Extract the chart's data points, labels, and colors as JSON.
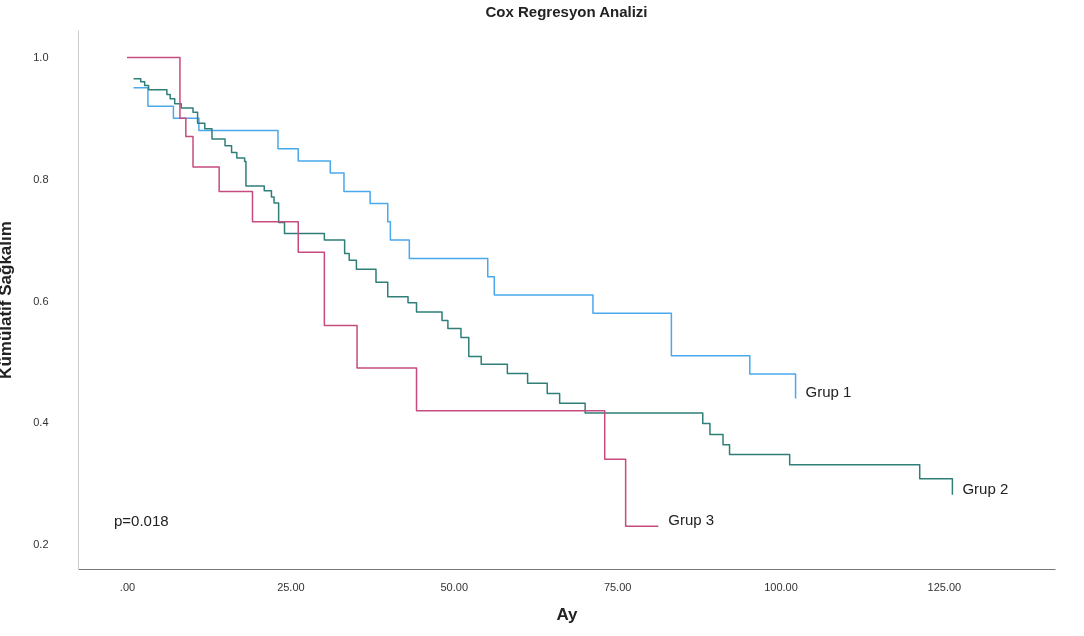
{
  "chart_data": {
    "type": "step",
    "title": "Cox Regresyon Analizi",
    "xlabel": "Ay",
    "ylabel": "Kümülatif Sağkalım",
    "xlim": [
      -7.5,
      142
    ],
    "ylim": [
      0.16,
      1.045
    ],
    "xticks": [
      {
        "value": 0,
        "label": ".00"
      },
      {
        "value": 25,
        "label": "25.00"
      },
      {
        "value": 50,
        "label": "50.00"
      },
      {
        "value": 75,
        "label": "75.00"
      },
      {
        "value": 100,
        "label": "100.00"
      },
      {
        "value": 125,
        "label": "125.00"
      }
    ],
    "yticks": [
      0.2,
      0.4,
      0.6,
      0.8,
      {
        "value": 1,
        "label": "1.0"
      }
    ],
    "grid": false,
    "legend": false,
    "marker": "none",
    "line_style": "solid",
    "annotations": [
      "p=0.018"
    ],
    "series": [
      {
        "name": "Grup 1",
        "color": "#4aa8ec",
        "x": [
          1.0,
          3.2,
          7.1,
          11.0,
          23.1,
          26.2,
          31.1,
          33.2,
          37.2,
          39.9,
          40.3,
          43.2,
          55.2,
          56.2,
          71.3,
          83.3,
          95.3,
          102.3
        ],
        "values": [
          0.95,
          0.92,
          0.9,
          0.88,
          0.85,
          0.83,
          0.81,
          0.78,
          0.76,
          0.73,
          0.7,
          0.67,
          0.64,
          0.61,
          0.58,
          0.51,
          0.48,
          0.44
        ]
      },
      {
        "name": "Grup 2",
        "color": "#2f7f78",
        "x": [
          1.0,
          2.1,
          2.7,
          3.3,
          6.1,
          6.6,
          7.3,
          8.3,
          10.1,
          10.8,
          11.9,
          13.0,
          15.0,
          16.0,
          16.8,
          18.0,
          18.2,
          21.0,
          22.1,
          22.5,
          23.2,
          24.1,
          30.2,
          33.3,
          34.0,
          35.1,
          38.1,
          39.9,
          43.0,
          44.3,
          48.2,
          49.1,
          51.1,
          52.3,
          54.2,
          58.2,
          61.3,
          64.3,
          66.2,
          70.1,
          88.1,
          89.2,
          91.2,
          92.2,
          101.4,
          121.3,
          126.3
        ],
        "values": [
          0.965,
          0.96,
          0.954,
          0.947,
          0.939,
          0.932,
          0.924,
          0.917,
          0.91,
          0.892,
          0.883,
          0.866,
          0.855,
          0.844,
          0.835,
          0.829,
          0.789,
          0.781,
          0.771,
          0.761,
          0.729,
          0.711,
          0.7,
          0.678,
          0.667,
          0.652,
          0.631,
          0.607,
          0.597,
          0.582,
          0.568,
          0.555,
          0.54,
          0.509,
          0.496,
          0.481,
          0.465,
          0.448,
          0.432,
          0.416,
          0.399,
          0.381,
          0.364,
          0.348,
          0.331,
          0.308,
          0.282
        ]
      },
      {
        "name": "Grup 3",
        "color": "#c64b7f",
        "x": [
          0,
          8.1,
          9.0,
          10.1,
          14.1,
          19.2,
          26.2,
          30.2,
          35.2,
          44.3,
          73.1,
          76.3,
          81.3
        ],
        "values": [
          1.0,
          0.9,
          0.87,
          0.82,
          0.78,
          0.73,
          0.68,
          0.56,
          0.49,
          0.42,
          0.34,
          0.23,
          0.23
        ]
      }
    ]
  }
}
